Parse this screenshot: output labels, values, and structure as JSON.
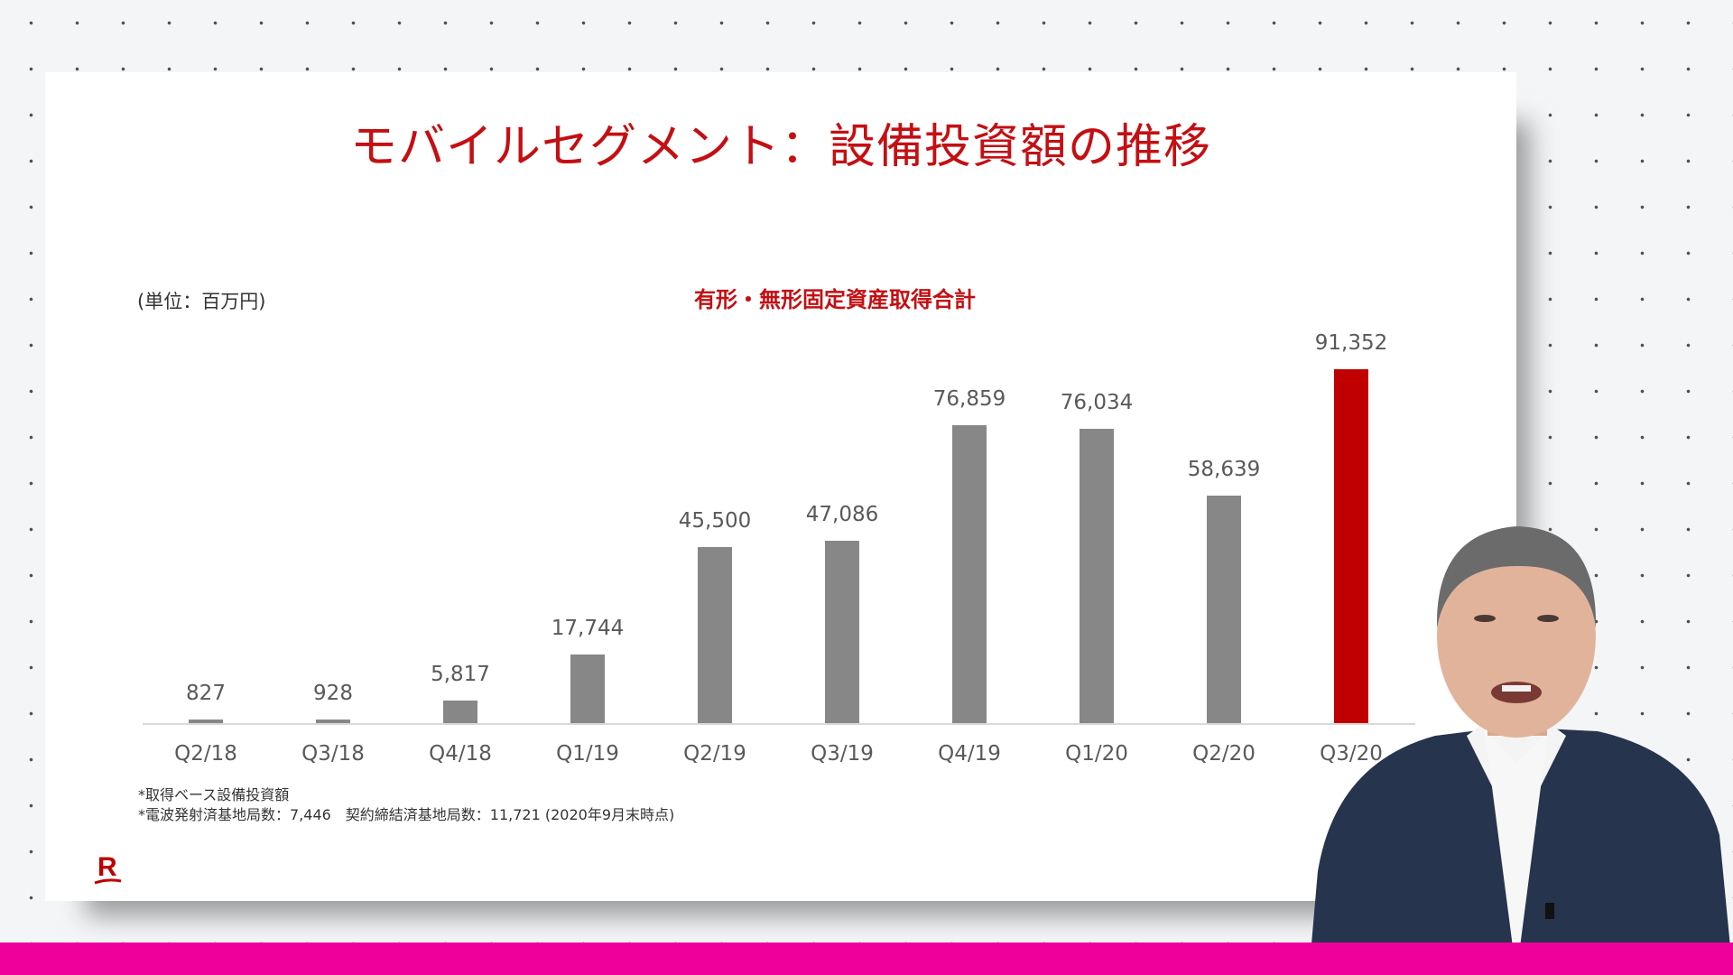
{
  "slide": {
    "title": "モバイルセグメント：設備投資額の推移",
    "unit_label": "(単位：百万円)",
    "chart_subtitle": "有形・無形固定資産取得合計",
    "notes": [
      "*取得ベース設備投資額",
      "*電波発射済基地局数：7,446　契約締結済基地局数：11,721 (2020年9月末時点)"
    ],
    "logo": "R"
  },
  "colors": {
    "title": "#c40f13",
    "bar_default": "#878787",
    "bar_highlight": "#c00000",
    "bottom_band": "#f0009a"
  },
  "chart_data": {
    "type": "bar",
    "title": "有形・無形固定資産取得合計",
    "unit": "百万円",
    "xlabel": "",
    "ylabel": "",
    "categories": [
      "Q2/18",
      "Q3/18",
      "Q4/18",
      "Q1/19",
      "Q2/19",
      "Q3/19",
      "Q4/19",
      "Q1/20",
      "Q2/20",
      "Q3/20"
    ],
    "values": [
      827,
      928,
      5817,
      17744,
      45500,
      47086,
      76859,
      76034,
      58639,
      91352
    ],
    "value_labels": [
      "827",
      "928",
      "5,817",
      "17,744",
      "45,500",
      "47,086",
      "76,859",
      "76,034",
      "58,639",
      "91,352"
    ],
    "highlight_index": 9,
    "ylim": [
      0,
      100000
    ],
    "grid": false,
    "legend": "none"
  },
  "presenter": {
    "description": "speaker in navy suit"
  }
}
